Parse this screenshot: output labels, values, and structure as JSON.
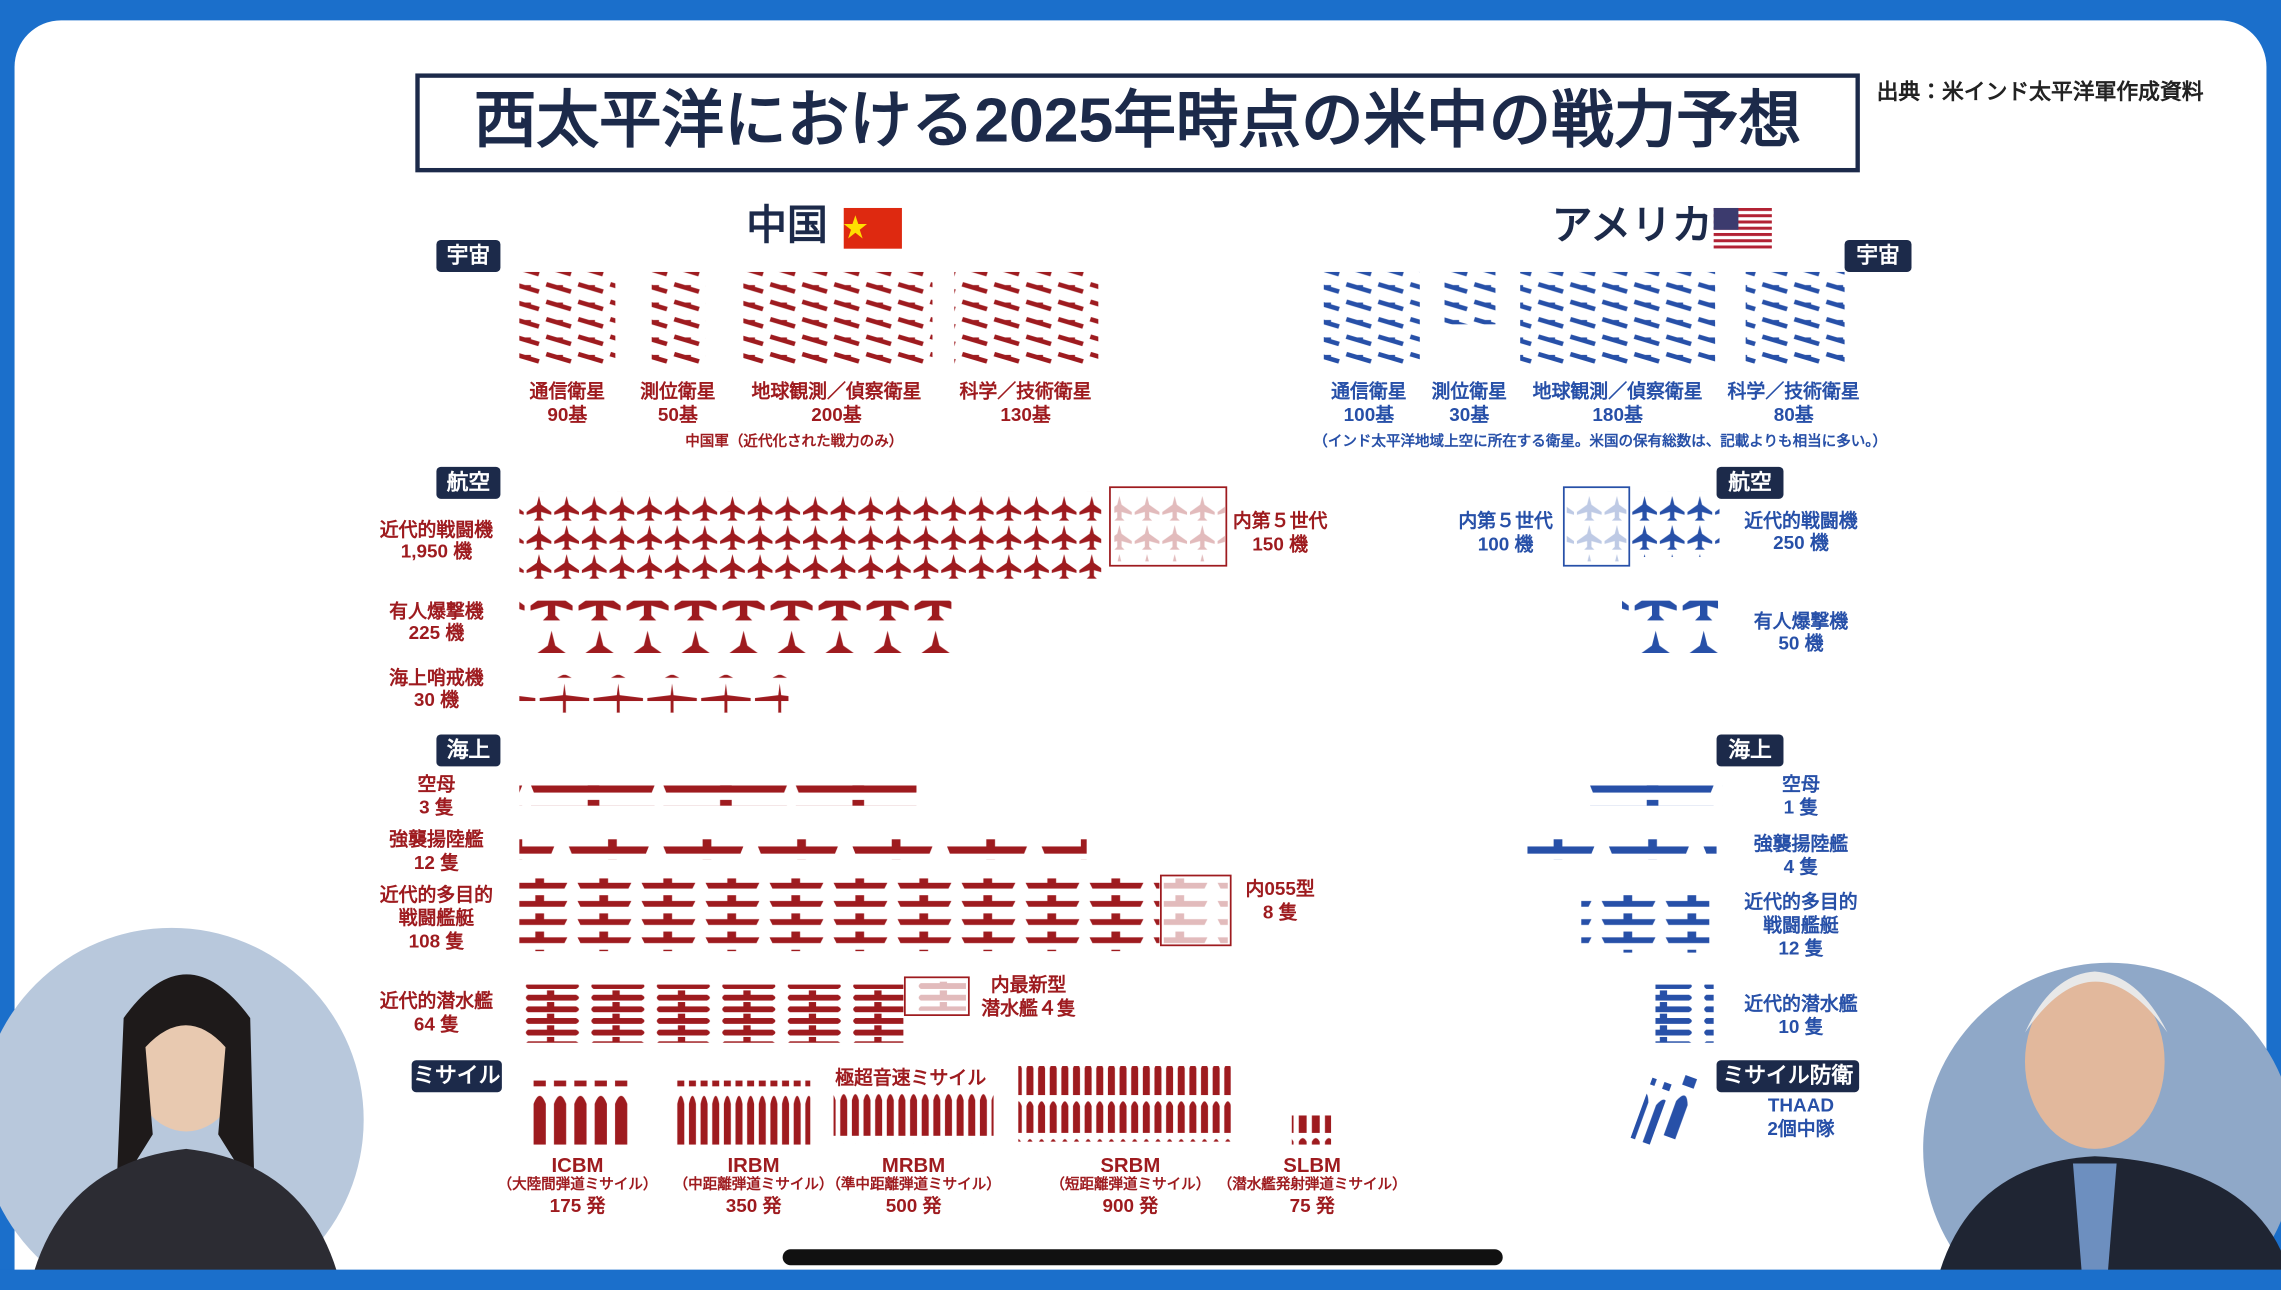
{
  "header": {
    "title": "西太平洋における2025年時点の米中の戦力予想",
    "source": "出典：米インド太平洋軍作成資料"
  },
  "china": {
    "label": "中国",
    "space": {
      "tag": "宇宙",
      "items": [
        {
          "label": "通信衛星",
          "count": "90基"
        },
        {
          "label": "測位衛星",
          "count": "50基"
        },
        {
          "label": "地球観測／偵察衛星",
          "count": "200基"
        },
        {
          "label": "科学／技術衛星",
          "count": "130基"
        }
      ],
      "note": "中国軍（近代化された戦力のみ）"
    },
    "air": {
      "tag": "航空",
      "items": [
        {
          "label": "近代的戦闘機",
          "count": "1,950 機",
          "sub_label": "内第５世代",
          "sub_count": "150 機"
        },
        {
          "label": "有人爆撃機",
          "count": "225 機"
        },
        {
          "label": "海上哨戒機",
          "count": "30 機"
        }
      ]
    },
    "sea": {
      "tag": "海上",
      "items": [
        {
          "label": [
            "空母"
          ],
          "count": "3 隻"
        },
        {
          "label": [
            "強襲揚陸艦"
          ],
          "count": "12 隻"
        },
        {
          "label": [
            "近代的多目的",
            "戦闘艦艇"
          ],
          "count": "108 隻",
          "sub_label": "内055型",
          "sub_count": "8 隻"
        },
        {
          "label": [
            "近代的潜水艦"
          ],
          "count": "64 隻",
          "sub_label": "内最新型",
          "sub_count": "潜水艦４隻"
        }
      ]
    },
    "missile": {
      "tag": "ミサイル",
      "note": "極超音速ミサイル",
      "items": [
        {
          "label": "ICBM",
          "desc": "（大陸間弾道ミサイル）",
          "count": "175 発"
        },
        {
          "label": "IRBM",
          "desc": "（中距離弾道ミサイル）",
          "count": "350 発"
        },
        {
          "label": "MRBM",
          "desc": "（準中距離弾道ミサイル）",
          "count": "500 発"
        },
        {
          "label": "SRBM",
          "desc": "（短距離弾道ミサイル）",
          "count": "900 発"
        },
        {
          "label": "SLBM",
          "desc": "（潜水艦発射弾道ミサイル）",
          "count": "75 発"
        }
      ]
    }
  },
  "usa": {
    "label": "アメリカ",
    "space": {
      "tag": "宇宙",
      "items": [
        {
          "label": "通信衛星",
          "count": "100基"
        },
        {
          "label": "測位衛星",
          "count": "30基"
        },
        {
          "label": "地球観測／偵察衛星",
          "count": "180基"
        },
        {
          "label": "科学／技術衛星",
          "count": "80基"
        }
      ],
      "note": "（インド太平洋地域上空に所在する衛星。米国の保有総数は、記載よりも相当に多い。）"
    },
    "air": {
      "tag": "航空",
      "items": [
        {
          "label": "近代的戦闘機",
          "count": "250 機",
          "sub_label": "内第５世代",
          "sub_count": "100 機"
        },
        {
          "label": "有人爆撃機",
          "count": "50 機"
        }
      ]
    },
    "sea": {
      "tag": "海上",
      "items": [
        {
          "label": [
            "空母"
          ],
          "count": "1 隻"
        },
        {
          "label": [
            "強襲揚陸艦"
          ],
          "count": "4 隻"
        },
        {
          "label": [
            "近代的多目的",
            "戦闘艦艇"
          ],
          "count": "12 隻"
        },
        {
          "label": [
            "近代的潜水艦"
          ],
          "count": "10 隻"
        }
      ]
    },
    "missile_defense": {
      "tag": "ミサイル防衛",
      "items": [
        {
          "label": "THAAD",
          "count": "2個中隊"
        }
      ]
    }
  }
}
